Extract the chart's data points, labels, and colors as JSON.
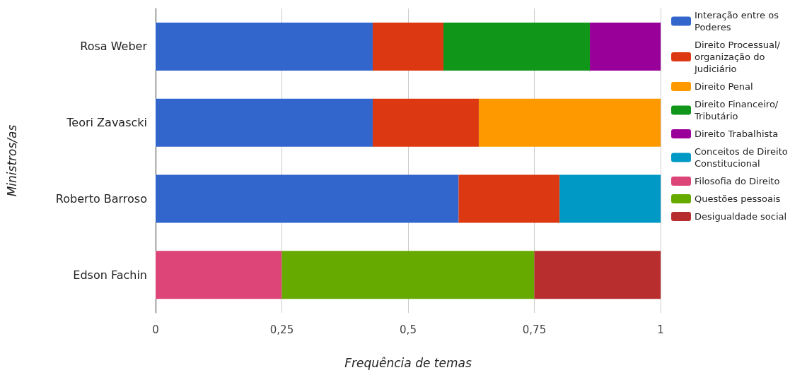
{
  "chart_data": {
    "type": "bar",
    "orientation": "horizontal",
    "stacked": true,
    "xlabel": "Frequência de temas",
    "ylabel": "Ministros/as",
    "categories": [
      "Rosa Weber",
      "Teori Zavascki",
      "Roberto Barroso",
      "Edson Fachin"
    ],
    "series": [
      {
        "name": "Interação entre os Poderes",
        "color": "#3366cc",
        "values": [
          0.43,
          0.43,
          0.6,
          null
        ]
      },
      {
        "name": "Direito Processual/ organização do Judiciário",
        "color": "#dc3912",
        "values": [
          0.14,
          0.21,
          0.2,
          null
        ]
      },
      {
        "name": "Direito Penal",
        "color": "#ff9900",
        "values": [
          null,
          0.36,
          null,
          null
        ]
      },
      {
        "name": "Direito Financeiro/ Tributário",
        "color": "#109618",
        "values": [
          0.29,
          null,
          null,
          null
        ]
      },
      {
        "name": "Direito Trabalhista",
        "color": "#990099",
        "values": [
          0.14,
          null,
          null,
          null
        ]
      },
      {
        "name": "Conceitos de Direito Constitucional",
        "color": "#0099c6",
        "values": [
          null,
          null,
          0.2,
          null
        ]
      },
      {
        "name": "Filosofia do Direito",
        "color": "#dd4477",
        "values": [
          null,
          null,
          null,
          0.25
        ]
      },
      {
        "name": "Questões pessoais",
        "color": "#66aa00",
        "values": [
          null,
          null,
          null,
          0.5
        ]
      },
      {
        "name": "Desigualdade social",
        "color": "#b82e2e",
        "values": [
          null,
          null,
          null,
          0.25
        ]
      }
    ],
    "xlim": [
      0,
      1
    ],
    "xticks": [
      0,
      {
        "value": 0.25,
        "label": "0,25"
      },
      {
        "value": 0.5,
        "label": "0,5"
      },
      {
        "value": 0.75,
        "label": "0,75"
      },
      1
    ],
    "grid": "x",
    "legend": "right"
  }
}
